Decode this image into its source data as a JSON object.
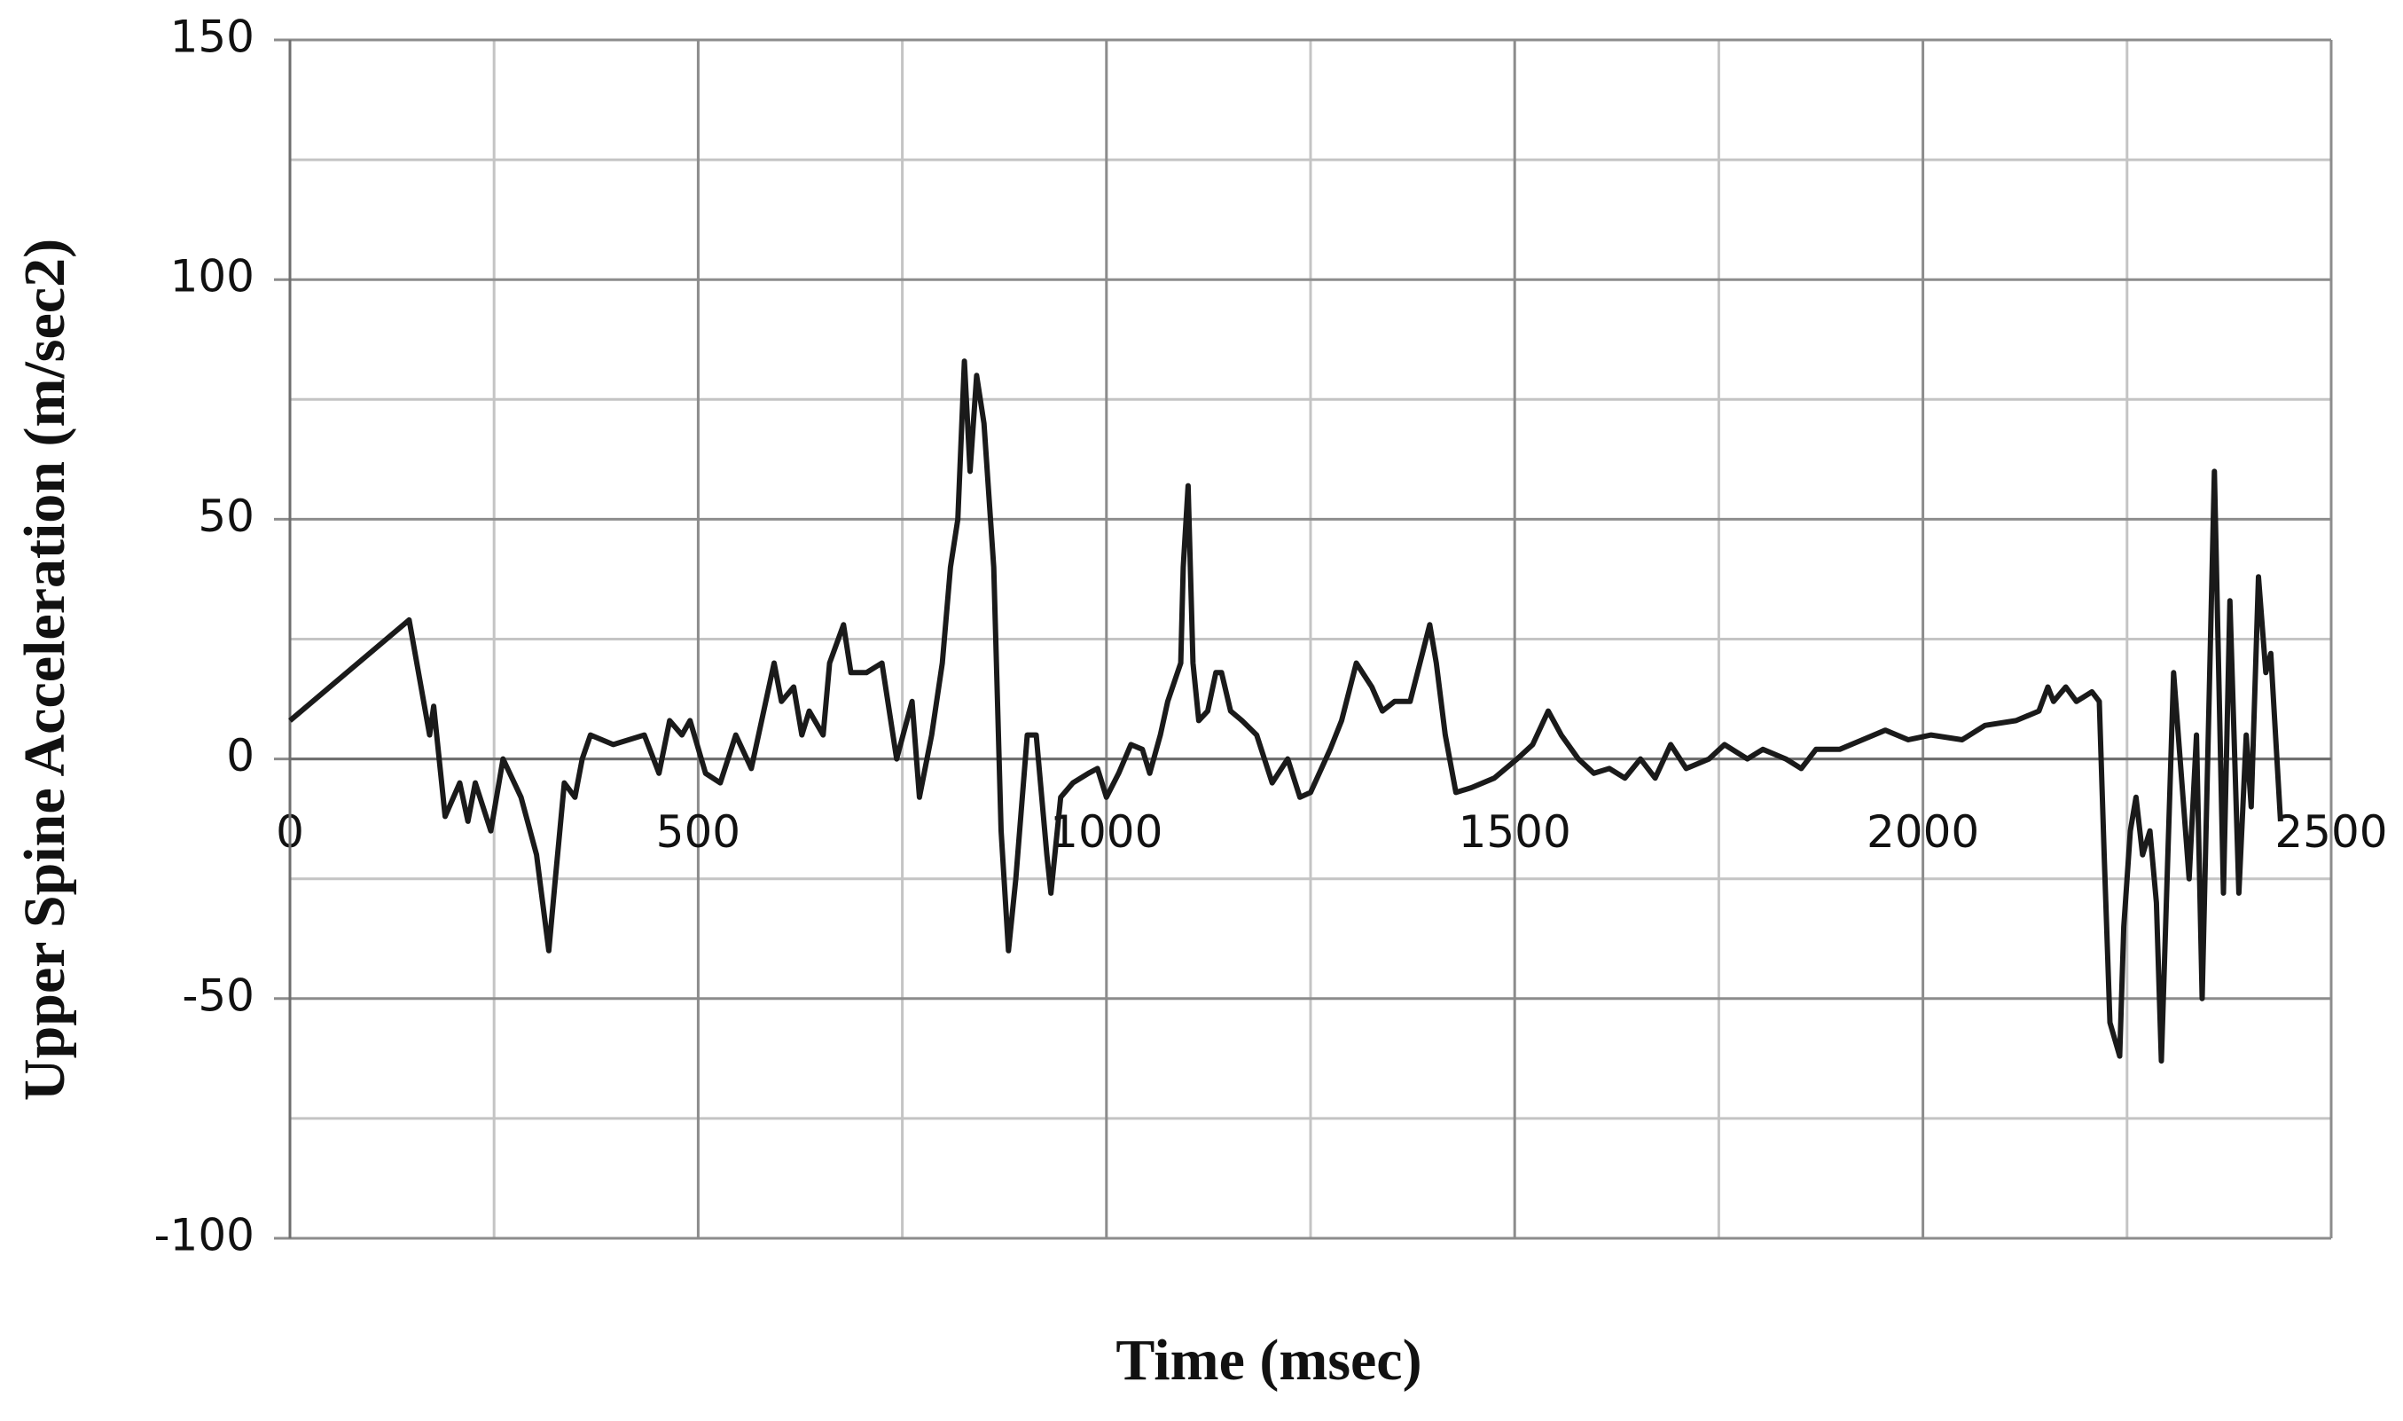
{
  "chart_data": {
    "type": "line",
    "x_label": "Time (msec)",
    "y_label": "Upper Spine Acceleration (m/sec2)",
    "color": "#1a1a1a",
    "x": [
      0,
      146,
      171,
      176,
      190,
      208,
      218,
      227,
      246,
      261,
      283,
      302,
      317,
      325,
      336,
      349,
      358,
      368,
      396,
      434,
      452,
      465,
      480,
      490,
      509,
      527,
      546,
      565,
      593,
      602,
      617,
      627,
      636,
      653,
      661,
      678,
      687,
      706,
      725,
      743,
      762,
      771,
      786,
      799,
      809,
      818,
      826,
      833,
      841,
      850,
      862,
      871,
      880,
      889,
      903,
      914,
      927,
      932,
      944,
      959,
      978,
      989,
      1000,
      1015,
      1030,
      1044,
      1053,
      1066,
      1075,
      1087,
      1091,
      1094,
      1100,
      1106,
      1113,
      1124,
      1134,
      1141,
      1152,
      1166,
      1184,
      1203,
      1222,
      1237,
      1250,
      1274,
      1288,
      1306,
      1325,
      1338,
      1353,
      1372,
      1387,
      1396,
      1404,
      1415,
      1428,
      1447,
      1475,
      1503,
      1522,
      1541,
      1557,
      1578,
      1597,
      1616,
      1635,
      1654,
      1672,
      1691,
      1710,
      1738,
      1757,
      1785,
      1804,
      1832,
      1851,
      1869,
      1898,
      1926,
      1954,
      1982,
      2010,
      2048,
      2076,
      2114,
      2142,
      2153,
      2160,
      2175,
      2188,
      2207,
      2216,
      2222,
      2229,
      2241,
      2246,
      2254,
      2261,
      2269,
      2278,
      2286,
      2292,
      2307,
      2326,
      2335,
      2342,
      2357,
      2368,
      2376,
      2387,
      2396,
      2402,
      2411,
      2420,
      2426,
      2438
    ],
    "values": [
      8,
      29,
      5,
      11,
      -12,
      -5,
      -13,
      -5,
      -15,
      0,
      -8,
      -20,
      -40,
      -25,
      -5,
      -8,
      0,
      5,
      3,
      5,
      -3,
      8,
      5,
      8,
      -3,
      -5,
      5,
      -2,
      20,
      12,
      15,
      5,
      10,
      5,
      20,
      28,
      18,
      18,
      20,
      0,
      12,
      -8,
      5,
      20,
      40,
      50,
      83,
      60,
      80,
      70,
      40,
      -15,
      -40,
      -25,
      5,
      5,
      -20,
      -28,
      -8,
      -5,
      -3,
      -2,
      -8,
      -3,
      3,
      2,
      -3,
      5,
      12,
      18,
      20,
      40,
      57,
      20,
      8,
      10,
      18,
      18,
      10,
      8,
      5,
      -5,
      0,
      -8,
      -7,
      2,
      8,
      20,
      15,
      10,
      12,
      12,
      22,
      28,
      20,
      5,
      -7,
      -6,
      -4,
      0,
      3,
      10,
      5,
      0,
      -3,
      -2,
      -4,
      0,
      -4,
      3,
      -2,
      0,
      3,
      0,
      2,
      0,
      -2,
      2,
      2,
      4,
      6,
      4,
      5,
      4,
      7,
      8,
      10,
      15,
      12,
      15,
      12,
      14,
      12,
      -20,
      -55,
      -62,
      -35,
      -15,
      -8,
      -20,
      -15,
      -30,
      -63,
      18,
      -25,
      5,
      -50,
      60,
      -28,
      33,
      -28,
      5,
      -10,
      38,
      18,
      22,
      -13
    ],
    "xlim": [
      0,
      2500
    ],
    "xticks": [
      0,
      500,
      1000,
      1500,
      2000,
      2500
    ],
    "ylim": [
      -100,
      150
    ],
    "yticks": [
      -100,
      -50,
      0,
      50,
      100,
      150
    ],
    "x_minor_grid": [
      250,
      750,
      1250,
      1750,
      2250
    ],
    "y_minor_grid": [
      -75,
      -25,
      25,
      75,
      125
    ],
    "grid": true
  }
}
